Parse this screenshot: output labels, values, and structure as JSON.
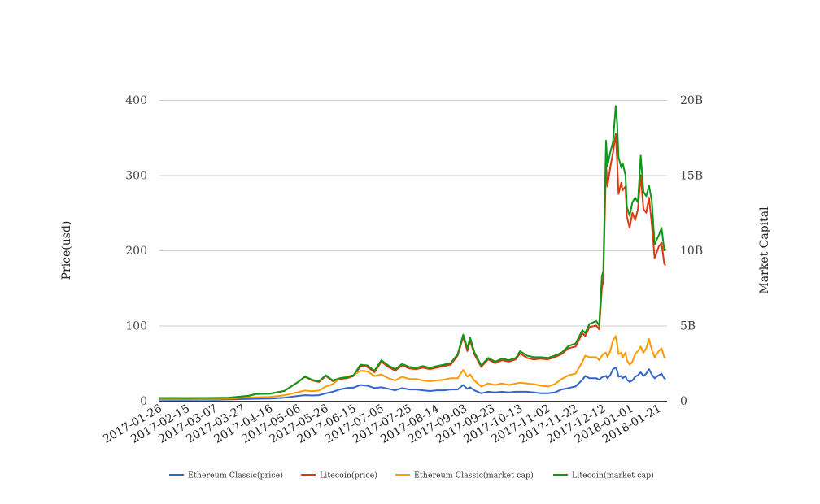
{
  "chart_data": {
    "type": "line",
    "title": "",
    "xlabel": "",
    "ylabel": "Price(usd)",
    "ylabel_right": "Market Capital",
    "ylim": [
      0,
      400
    ],
    "ylim_right": [
      0,
      20
    ],
    "right_unit": "B",
    "grid": true,
    "legend_position": "bottom",
    "x_domain": [
      "2017-01-26",
      "2018-01-27"
    ],
    "x_ticks": [
      "2017-01-26",
      "2017-02-15",
      "2017-03-07",
      "2017-03-27",
      "2017-04-16",
      "2017-05-06",
      "2017-05-26",
      "2017-06-15",
      "2017-07-05",
      "2017-07-25",
      "2017-08-14",
      "2017-09-03",
      "2017-09-23",
      "2017-10-13",
      "2017-11-02",
      "2017-11-22",
      "2017-12-12",
      "2018-01-01",
      "2018-01-21"
    ],
    "y_ticks": [
      "0",
      "100",
      "200",
      "300",
      "400"
    ],
    "y_ticks_values": [
      0,
      100,
      200,
      300,
      400
    ],
    "y_ticks_right": [
      "0",
      "5B",
      "10B",
      "15B",
      "20B"
    ],
    "y_ticks_right_values": [
      0,
      5,
      10,
      15,
      20
    ],
    "x": [
      "2017-01-26",
      "2017-02-05",
      "2017-02-15",
      "2017-02-25",
      "2017-03-07",
      "2017-03-17",
      "2017-03-31",
      "2017-04-06",
      "2017-04-16",
      "2017-04-26",
      "2017-05-06",
      "2017-05-11",
      "2017-05-16",
      "2017-05-21",
      "2017-05-26",
      "2017-05-31",
      "2017-06-05",
      "2017-06-10",
      "2017-06-15",
      "2017-06-20",
      "2017-06-25",
      "2017-06-30",
      "2017-07-05",
      "2017-07-10",
      "2017-07-15",
      "2017-07-20",
      "2017-07-25",
      "2017-07-30",
      "2017-08-04",
      "2017-08-09",
      "2017-08-14",
      "2017-08-19",
      "2017-08-24",
      "2017-08-29",
      "2017-09-02",
      "2017-09-05",
      "2017-09-07",
      "2017-09-10",
      "2017-09-15",
      "2017-09-20",
      "2017-09-25",
      "2017-09-30",
      "2017-10-05",
      "2017-10-10",
      "2017-10-13",
      "2017-10-18",
      "2017-10-23",
      "2017-10-28",
      "2017-11-02",
      "2017-11-07",
      "2017-11-12",
      "2017-11-17",
      "2017-11-22",
      "2017-11-27",
      "2017-11-29",
      "2017-12-02",
      "2017-12-07",
      "2017-12-09",
      "2017-12-11",
      "2017-12-12",
      "2017-12-14",
      "2017-12-15",
      "2017-12-17",
      "2017-12-19",
      "2017-12-21",
      "2017-12-22",
      "2017-12-23",
      "2017-12-25",
      "2017-12-26",
      "2017-12-28",
      "2017-12-29",
      "2017-12-31",
      "2018-01-02",
      "2018-01-04",
      "2018-01-06",
      "2018-01-08",
      "2018-01-10",
      "2018-01-12",
      "2018-01-14",
      "2018-01-16",
      "2018-01-18",
      "2018-01-21",
      "2018-01-23",
      "2018-01-25",
      "2018-01-26"
    ],
    "series": [
      {
        "name": "Ethereum Classic(price)",
        "axis": "left",
        "color": "#3366cc",
        "values": [
          1.5,
          1.4,
          1.4,
          1.5,
          1.4,
          1.7,
          2.5,
          2.7,
          2.9,
          4,
          6.5,
          7.5,
          7,
          7.5,
          10,
          12,
          15,
          17,
          17.5,
          21,
          20,
          17,
          18,
          16,
          14,
          17,
          15,
          15,
          14,
          13,
          14,
          14,
          15,
          15,
          21,
          16,
          18,
          14,
          10,
          12,
          11,
          12,
          11,
          12,
          12,
          12,
          11,
          10,
          10,
          11,
          15,
          17,
          19,
          28,
          33,
          30,
          30,
          28,
          31,
          32,
          33,
          30,
          34,
          42,
          44,
          40,
          32,
          33,
          30,
          33,
          28,
          25,
          27,
          32,
          34,
          38,
          33,
          36,
          42,
          35,
          30,
          34,
          36,
          30,
          29
        ]
      },
      {
        "name": "Litecoin(price)",
        "axis": "left",
        "color": "#dc3912",
        "values": [
          3.8,
          3.8,
          3.7,
          3.8,
          3.9,
          4.0,
          6.5,
          9,
          9.5,
          13,
          25,
          32,
          27,
          25,
          33,
          26,
          29,
          30,
          33,
          46,
          45,
          38,
          52,
          45,
          40,
          47,
          43,
          42,
          44,
          42,
          44,
          46,
          48,
          60,
          85,
          66,
          80,
          62,
          45,
          55,
          50,
          54,
          52,
          55,
          63,
          57,
          55,
          56,
          55,
          58,
          62,
          70,
          72,
          90,
          86,
          98,
          100,
          95,
          150,
          160,
          315,
          285,
          310,
          330,
          355,
          320,
          275,
          290,
          280,
          285,
          245,
          230,
          250,
          240,
          255,
          300,
          255,
          250,
          270,
          235,
          190,
          205,
          210,
          182,
          180
        ]
      },
      {
        "name": "Ethereum Classic(market cap)",
        "axis": "right",
        "color": "#ff9900",
        "values": [
          0.13,
          0.12,
          0.12,
          0.13,
          0.12,
          0.15,
          0.22,
          0.24,
          0.26,
          0.36,
          0.58,
          0.68,
          0.63,
          0.68,
          0.95,
          1.1,
          1.5,
          1.6,
          1.7,
          2.0,
          1.95,
          1.65,
          1.75,
          1.5,
          1.35,
          1.6,
          1.45,
          1.45,
          1.35,
          1.3,
          1.35,
          1.4,
          1.5,
          1.5,
          2.05,
          1.6,
          1.75,
          1.35,
          0.95,
          1.15,
          1.05,
          1.15,
          1.05,
          1.15,
          1.2,
          1.15,
          1.1,
          1.0,
          0.95,
          1.1,
          1.45,
          1.7,
          1.8,
          2.6,
          3.0,
          2.9,
          2.9,
          2.7,
          3.0,
          3.1,
          3.2,
          2.9,
          3.3,
          4.0,
          4.3,
          3.8,
          3.1,
          3.2,
          2.9,
          3.2,
          2.7,
          2.4,
          2.6,
          3.1,
          3.3,
          3.6,
          3.2,
          3.5,
          4.1,
          3.4,
          2.9,
          3.3,
          3.5,
          2.9,
          2.9
        ]
      },
      {
        "name": "Litecoin(market cap)",
        "axis": "right",
        "color": "#109618",
        "values": [
          0.19,
          0.19,
          0.18,
          0.19,
          0.19,
          0.2,
          0.33,
          0.46,
          0.48,
          0.66,
          1.25,
          1.62,
          1.4,
          1.3,
          1.7,
          1.35,
          1.5,
          1.55,
          1.7,
          2.4,
          2.35,
          2.0,
          2.7,
          2.35,
          2.1,
          2.45,
          2.25,
          2.2,
          2.3,
          2.2,
          2.3,
          2.4,
          2.5,
          3.1,
          4.4,
          3.5,
          4.2,
          3.25,
          2.35,
          2.85,
          2.6,
          2.8,
          2.7,
          2.85,
          3.3,
          3.0,
          2.9,
          2.9,
          2.85,
          3.0,
          3.2,
          3.65,
          3.8,
          4.7,
          4.5,
          5.1,
          5.3,
          5.0,
          8.3,
          8.6,
          17.3,
          15.6,
          16.5,
          17.2,
          19.6,
          18.5,
          16.2,
          15.5,
          15.8,
          15.0,
          12.9,
          12.3,
          13.2,
          13.5,
          13.2,
          16.3,
          13.9,
          13.6,
          14.3,
          13.3,
          10.4,
          11.0,
          11.5,
          10.0,
          10.1
        ]
      }
    ]
  }
}
